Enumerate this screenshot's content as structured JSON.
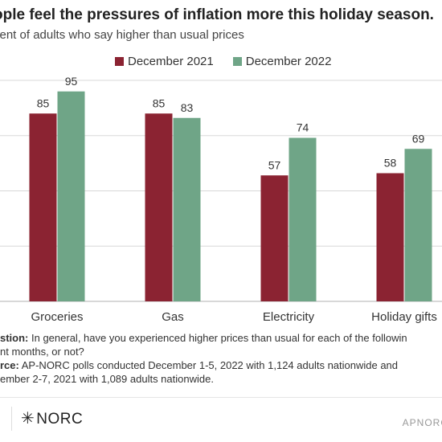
{
  "title": "ople feel the pressures of inflation more this holiday season.",
  "subtitle": "cent of adults who say higher than usual prices",
  "colors": {
    "dec2021": "#8b2332",
    "dec2022": "#6fa587",
    "grid": "#d8d8d8",
    "axis": "#b0b0b0"
  },
  "chart_data": {
    "type": "bar",
    "categories": [
      "Groceries",
      "Gas",
      "Electricity",
      "Holiday gifts"
    ],
    "series": [
      {
        "name": "December 2021",
        "values": [
          85,
          85,
          57,
          58
        ]
      },
      {
        "name": "December 2022",
        "values": [
          95,
          83,
          74,
          69
        ]
      }
    ],
    "ylim": [
      0,
      100
    ],
    "grid": true,
    "legend": "top-center"
  },
  "footnote": {
    "question_label": "stion:",
    "question_text": " In general, have you experienced higher prices than usual for each of the followin",
    "question_text2": "nt months, or not?",
    "source_label": "rce:",
    "source_text": " AP-NORC polls conducted December 1-5, 2022 with 1,124 adults nationwide and",
    "source_text2": "ember 2-7, 2021 with 1,089 adults nationwide."
  },
  "logo": {
    "star": "✳",
    "text": "NORC"
  },
  "brand_right": "APNORC"
}
